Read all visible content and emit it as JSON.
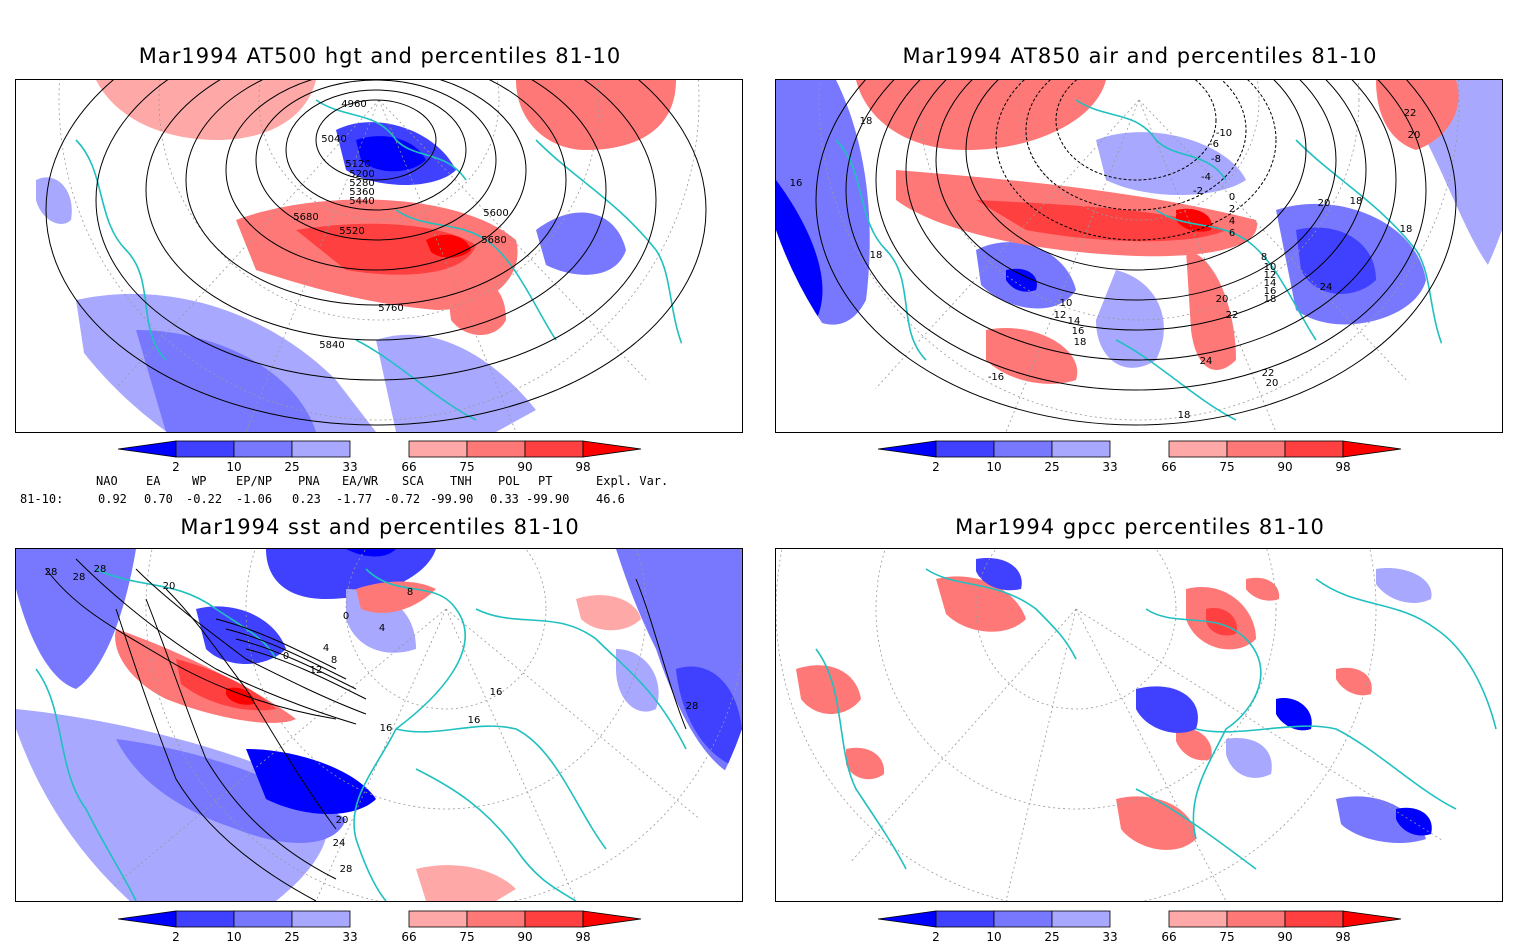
{
  "panels": [
    {
      "title": "Mar1994 AT500 hgt and percentiles 81-10",
      "contour_labels": [
        "4960",
        "5040",
        "5120",
        "5200",
        "5280",
        "5360",
        "5440",
        "5520",
        "5600",
        "5680",
        "5680",
        "5760",
        "5840"
      ]
    },
    {
      "title": "Mar1994 AT850 air and percentiles 81-10",
      "contour_labels": [
        "18",
        "16",
        "18",
        "-10",
        "-8",
        "-6",
        "-4",
        "-2",
        "0",
        "2",
        "4",
        "6",
        "8",
        "10",
        "12",
        "14",
        "16",
        "18",
        "20",
        "22",
        "24",
        "22",
        "20",
        "18",
        "22",
        "20",
        "20",
        "18",
        "24",
        "10",
        "12",
        "14",
        "16",
        "18",
        "-16",
        "18"
      ]
    },
    {
      "title": "Mar1994 sst and percentiles 81-10",
      "contour_labels": [
        "28",
        "28",
        "28",
        "20",
        "0",
        "4",
        "8",
        "12",
        "0",
        "4",
        "8",
        "16",
        "16",
        "16",
        "20",
        "24",
        "28",
        "28"
      ]
    },
    {
      "title": "Mar1994 gpcc percentiles 81-10",
      "contour_labels": []
    }
  ],
  "colorbar": {
    "labels": [
      "2",
      "10",
      "25",
      "33",
      "66",
      "75",
      "90",
      "98"
    ],
    "blue_colors": [
      "#0000ff",
      "#4040ff",
      "#7878ff",
      "#a8a8ff"
    ],
    "red_colors": [
      "#ffa8a8",
      "#ff7878",
      "#ff4040",
      "#ff0000"
    ]
  },
  "indices": {
    "headers": [
      "NAO",
      "EA",
      "WP",
      "EP/NP",
      "PNA",
      "EA/WR",
      "SCA",
      "TNH",
      "POL",
      "PT",
      "Expl. Var."
    ],
    "row_label": "81-10:",
    "values": [
      "0.92",
      "0.70",
      "-0.22",
      "-1.06",
      "0.23",
      "-1.77",
      "-0.72",
      "-99.90",
      "0.33",
      "-99.90",
      "46.6"
    ]
  },
  "colors": {
    "coast": "#20c0c0",
    "contour": "#000000",
    "grid": "#999999"
  }
}
